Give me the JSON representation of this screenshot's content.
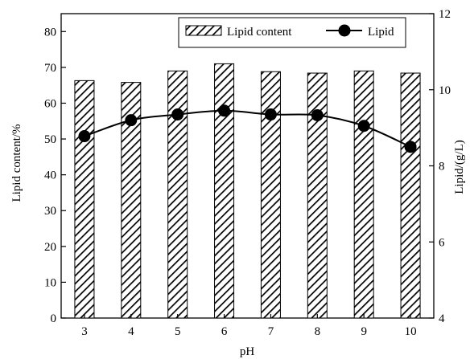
{
  "chart_data": {
    "type": "bar+line",
    "categories": [
      "3",
      "4",
      "5",
      "6",
      "7",
      "8",
      "9",
      "10"
    ],
    "series": [
      {
        "name": "Lipid content",
        "type": "bar",
        "axis": "left",
        "pattern": "diagonal-hatch",
        "values": [
          66.3,
          65.8,
          69.0,
          71.0,
          68.8,
          68.4,
          69.0,
          68.4
        ]
      },
      {
        "name": "Lipid",
        "type": "line",
        "axis": "right",
        "marker": "filled-circle",
        "values": [
          8.78,
          9.2,
          9.35,
          9.45,
          9.35,
          9.33,
          9.05,
          8.5
        ]
      }
    ],
    "xlabel": "pH",
    "ylabel_left": "Lipid content/%",
    "ylabel_right": "Lipid/(g/L)",
    "ylim_left": [
      0,
      85
    ],
    "yticks_left": [
      "0",
      "10",
      "20",
      "30",
      "40",
      "50",
      "60",
      "70",
      "80"
    ],
    "ylim_right": [
      4,
      12
    ],
    "yticks_right": [
      "4",
      "6",
      "8",
      "10",
      "12"
    ],
    "grid": false,
    "legend_position": "top"
  },
  "colors": {
    "ink": "#000000",
    "background": "#ffffff"
  }
}
